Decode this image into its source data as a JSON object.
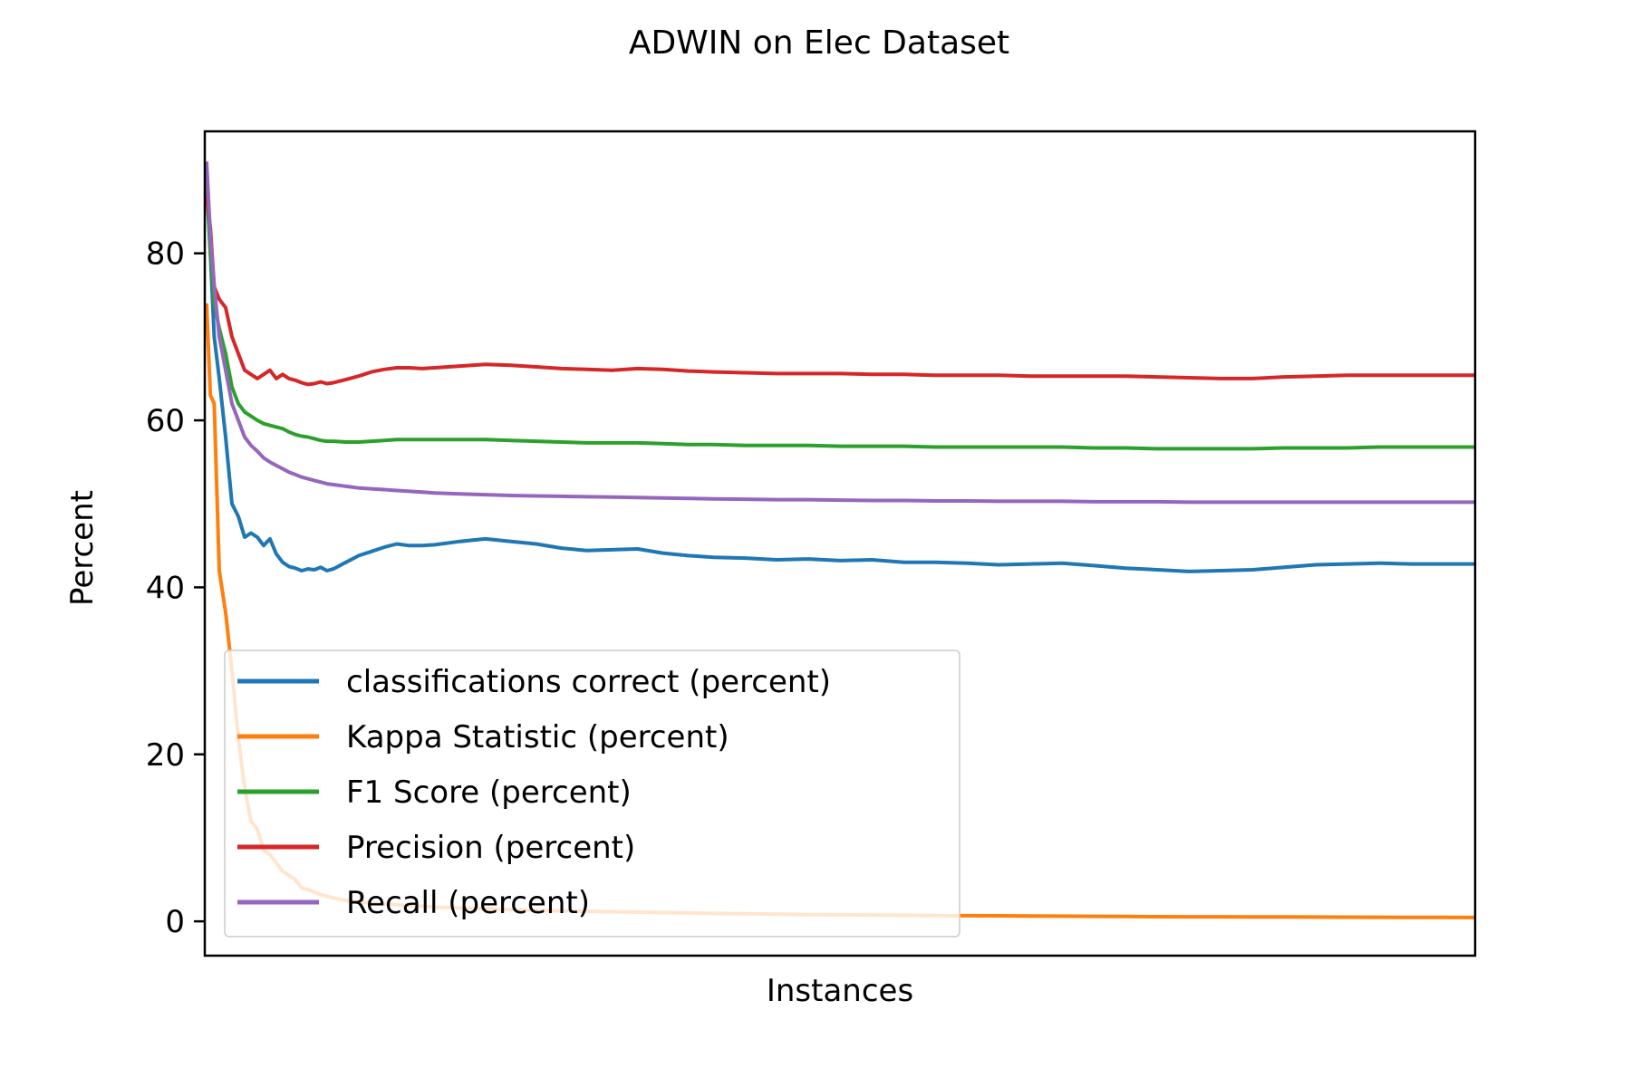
{
  "chart_data": {
    "type": "line",
    "title": "ADWIN on Elec Dataset",
    "xlabel": "Instances",
    "ylabel": "Percent",
    "xlim": [
      0,
      1000
    ],
    "ylim": [
      -4,
      94.5
    ],
    "yticks": [
      0,
      20,
      40,
      60,
      80
    ],
    "x_tick_labels_shown": false,
    "grid": false,
    "legend_position": "lower-left",
    "x": [
      0,
      3,
      6,
      10,
      15,
      20,
      25,
      30,
      35,
      40,
      45,
      50,
      55,
      60,
      65,
      70,
      75,
      80,
      85,
      90,
      95,
      100,
      110,
      120,
      130,
      140,
      150,
      160,
      170,
      180,
      200,
      220,
      240,
      260,
      280,
      300,
      320,
      340,
      360,
      380,
      400,
      425,
      450,
      475,
      500,
      525,
      550,
      575,
      600,
      625,
      650,
      675,
      700,
      725,
      750,
      775,
      800,
      825,
      850,
      875,
      900,
      925,
      950,
      975,
      1000
    ],
    "series": [
      {
        "name": "classifications correct (percent)",
        "color": "#1f77b4",
        "values": [
          88,
          80,
          70,
          65,
          58,
          50,
          48.5,
          46,
          46.5,
          46,
          45,
          45.8,
          44,
          43,
          42.5,
          42.3,
          42,
          42.2,
          42.1,
          42.4,
          42,
          42.2,
          43,
          43.8,
          44.3,
          44.8,
          45.2,
          45,
          45,
          45.1,
          45.5,
          45.8,
          45.5,
          45.2,
          44.7,
          44.4,
          44.5,
          44.6,
          44.1,
          43.8,
          43.6,
          43.5,
          43.3,
          43.4,
          43.2,
          43.3,
          43,
          43,
          42.9,
          42.7,
          42.8,
          42.9,
          42.6,
          42.3,
          42.1,
          41.9,
          42.0,
          42.1,
          42.4,
          42.7,
          42.8,
          42.9,
          42.8,
          42.8,
          42.8
        ]
      },
      {
        "name": "Kappa Statistic (percent)",
        "color": "#ff7f0e",
        "values": [
          74,
          63,
          62,
          42,
          37,
          30,
          22,
          16,
          12,
          11,
          8.5,
          8,
          7,
          6,
          5.5,
          5,
          4,
          3.8,
          3.5,
          3.2,
          3,
          2.8,
          2.5,
          2.3,
          2.2,
          2.1,
          2,
          1.9,
          1.8,
          1.7,
          1.6,
          1.5,
          1.4,
          1.3,
          1.25,
          1.2,
          1.15,
          1.1,
          1.05,
          1.0,
          0.95,
          0.9,
          0.85,
          0.8,
          0.78,
          0.75,
          0.72,
          0.7,
          0.68,
          0.66,
          0.64,
          0.62,
          0.6,
          0.58,
          0.56,
          0.55,
          0.54,
          0.53,
          0.52,
          0.51,
          0.5,
          0.49,
          0.48,
          0.47,
          0.46
        ]
      },
      {
        "name": "F1 Score (percent)",
        "color": "#2ca02c",
        "values": [
          89,
          80,
          74,
          71,
          68,
          64,
          62,
          61,
          60.5,
          60,
          59.6,
          59.4,
          59.2,
          59,
          58.6,
          58.3,
          58.1,
          58,
          57.8,
          57.6,
          57.5,
          57.5,
          57.4,
          57.4,
          57.5,
          57.6,
          57.7,
          57.7,
          57.7,
          57.7,
          57.7,
          57.7,
          57.6,
          57.5,
          57.4,
          57.3,
          57.3,
          57.3,
          57.2,
          57.1,
          57.1,
          57.0,
          57.0,
          57.0,
          56.9,
          56.9,
          56.9,
          56.8,
          56.8,
          56.8,
          56.8,
          56.8,
          56.7,
          56.7,
          56.6,
          56.6,
          56.6,
          56.6,
          56.7,
          56.7,
          56.7,
          56.8,
          56.8,
          56.8,
          56.8
        ]
      },
      {
        "name": "Precision (percent)",
        "color": "#d62728",
        "values": [
          87,
          83,
          76,
          74.5,
          73.5,
          70,
          68,
          66,
          65.5,
          65,
          65.5,
          66,
          65,
          65.5,
          65,
          64.8,
          64.5,
          64.3,
          64.4,
          64.6,
          64.4,
          64.5,
          64.9,
          65.3,
          65.8,
          66.1,
          66.3,
          66.3,
          66.2,
          66.3,
          66.5,
          66.7,
          66.6,
          66.4,
          66.2,
          66.1,
          66.0,
          66.2,
          66.1,
          65.9,
          65.8,
          65.7,
          65.6,
          65.6,
          65.6,
          65.5,
          65.5,
          65.4,
          65.4,
          65.4,
          65.3,
          65.3,
          65.3,
          65.3,
          65.2,
          65.1,
          65.0,
          65.0,
          65.2,
          65.3,
          65.4,
          65.4,
          65.4,
          65.4,
          65.4
        ]
      },
      {
        "name": "Recall (percent)",
        "color": "#9467bd",
        "values": [
          91,
          82,
          76,
          70,
          66,
          62,
          60,
          58,
          57,
          56.3,
          55.5,
          55,
          54.6,
          54.2,
          53.8,
          53.5,
          53.2,
          53.0,
          52.8,
          52.6,
          52.4,
          52.3,
          52.1,
          51.9,
          51.8,
          51.7,
          51.6,
          51.5,
          51.4,
          51.3,
          51.2,
          51.1,
          51.0,
          50.95,
          50.9,
          50.85,
          50.8,
          50.75,
          50.7,
          50.65,
          50.6,
          50.55,
          50.5,
          50.5,
          50.45,
          50.4,
          50.4,
          50.35,
          50.35,
          50.3,
          50.3,
          50.3,
          50.25,
          50.25,
          50.25,
          50.2,
          50.2,
          50.2,
          50.2,
          50.2,
          50.2,
          50.2,
          50.2,
          50.2,
          50.2
        ]
      }
    ]
  }
}
